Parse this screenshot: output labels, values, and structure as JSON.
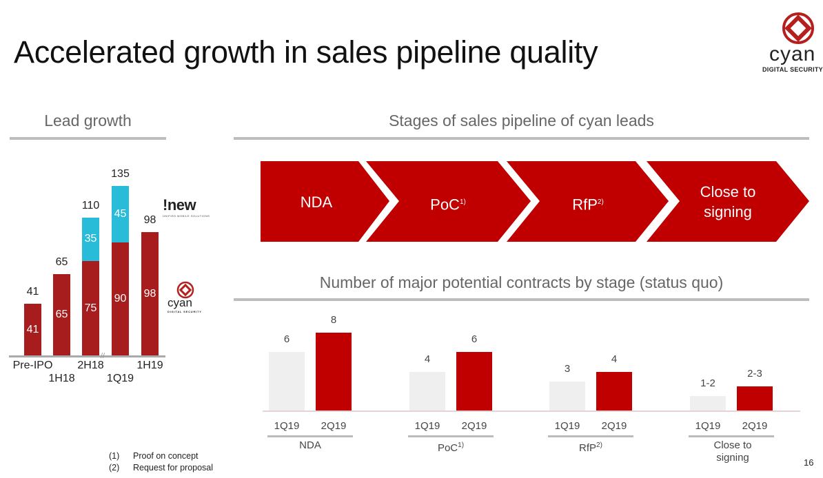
{
  "title": "Accelerated growth in sales pipeline quality",
  "logo": {
    "text": "cyan",
    "subtext": "DIGITAL SECURITY"
  },
  "page_number": "16",
  "colors": {
    "cyan_red": "#a71c1c",
    "inew_blue": "#29bcd8",
    "stage_red": "#c00000",
    "prior_gray": "#efefef"
  },
  "lead_growth": {
    "heading": "Lead growth",
    "legend_logos": [
      {
        "name": "!new",
        "subtext": "UNIFIED MOBILE SOLUTIONS"
      },
      {
        "name": "cyan",
        "subtext": "DIGITAL SECURITY"
      }
    ]
  },
  "pipeline": {
    "heading": "Stages of sales pipeline of cyan leads",
    "stages": [
      {
        "label": "NDA",
        "sup": ""
      },
      {
        "label": "PoC",
        "sup": "1)"
      },
      {
        "label": "RfP",
        "sup": "2)"
      },
      {
        "label": "Close to signing",
        "sup": ""
      }
    ]
  },
  "contracts": {
    "heading": "Number of major potential contracts by stage (status quo)"
  },
  "chart_data": [
    {
      "type": "bar",
      "stacked": true,
      "title": "Lead growth",
      "categories": [
        "Pre-IPO",
        "1H18",
        "2H18",
        "1Q19",
        "1H19"
      ],
      "series": [
        {
          "name": "cyan",
          "color": "#a71c1c",
          "values": [
            41,
            65,
            75,
            90,
            98
          ]
        },
        {
          "name": "!new",
          "color": "#29bcd8",
          "values": [
            0,
            0,
            35,
            45,
            0
          ]
        }
      ],
      "totals": [
        41,
        65,
        110,
        135,
        98
      ],
      "axis_break_between": [
        "2H18",
        "1Q19"
      ],
      "ylim": [
        0,
        135
      ],
      "grid": false
    },
    {
      "type": "bar",
      "title": "Number of major potential contracts by stage (status quo)",
      "groups": [
        {
          "label": "NDA",
          "sup": "",
          "bars": [
            {
              "period": "1Q19",
              "value": 6,
              "label": "6"
            },
            {
              "period": "2Q19",
              "value": 8,
              "label": "8"
            }
          ]
        },
        {
          "label": "PoC",
          "sup": "1)",
          "bars": [
            {
              "period": "1Q19",
              "value": 4,
              "label": "4"
            },
            {
              "period": "2Q19",
              "value": 6,
              "label": "6"
            }
          ]
        },
        {
          "label": "RfP",
          "sup": "2)",
          "bars": [
            {
              "period": "1Q19",
              "value": 3,
              "label": "3"
            },
            {
              "period": "2Q19",
              "value": 4,
              "label": "4"
            }
          ]
        },
        {
          "label": "Close to signing",
          "sup": "",
          "bars": [
            {
              "period": "1Q19",
              "value": 1.5,
              "label": "1-2"
            },
            {
              "period": "2Q19",
              "value": 2.5,
              "label": "2-3"
            }
          ]
        }
      ],
      "ylim": [
        0,
        8
      ],
      "grid": false
    }
  ],
  "footnotes": [
    {
      "marker": "(1)",
      "text": "Proof on concept"
    },
    {
      "marker": "(2)",
      "text": "Request for proposal"
    }
  ]
}
